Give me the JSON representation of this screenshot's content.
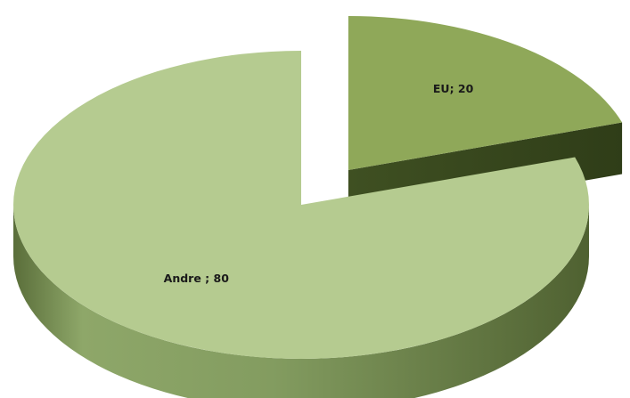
{
  "chart_data": {
    "type": "pie",
    "style": "3d-exploded",
    "title": "",
    "slices": [
      {
        "name": "EU",
        "value": 20,
        "label": "EU; 20",
        "color": "#8fa859",
        "exploded": true
      },
      {
        "name": "Andre",
        "value": 80,
        "label": "Andre ; 80",
        "color": "#b5cb90",
        "exploded": false
      }
    ],
    "legend": "none"
  }
}
